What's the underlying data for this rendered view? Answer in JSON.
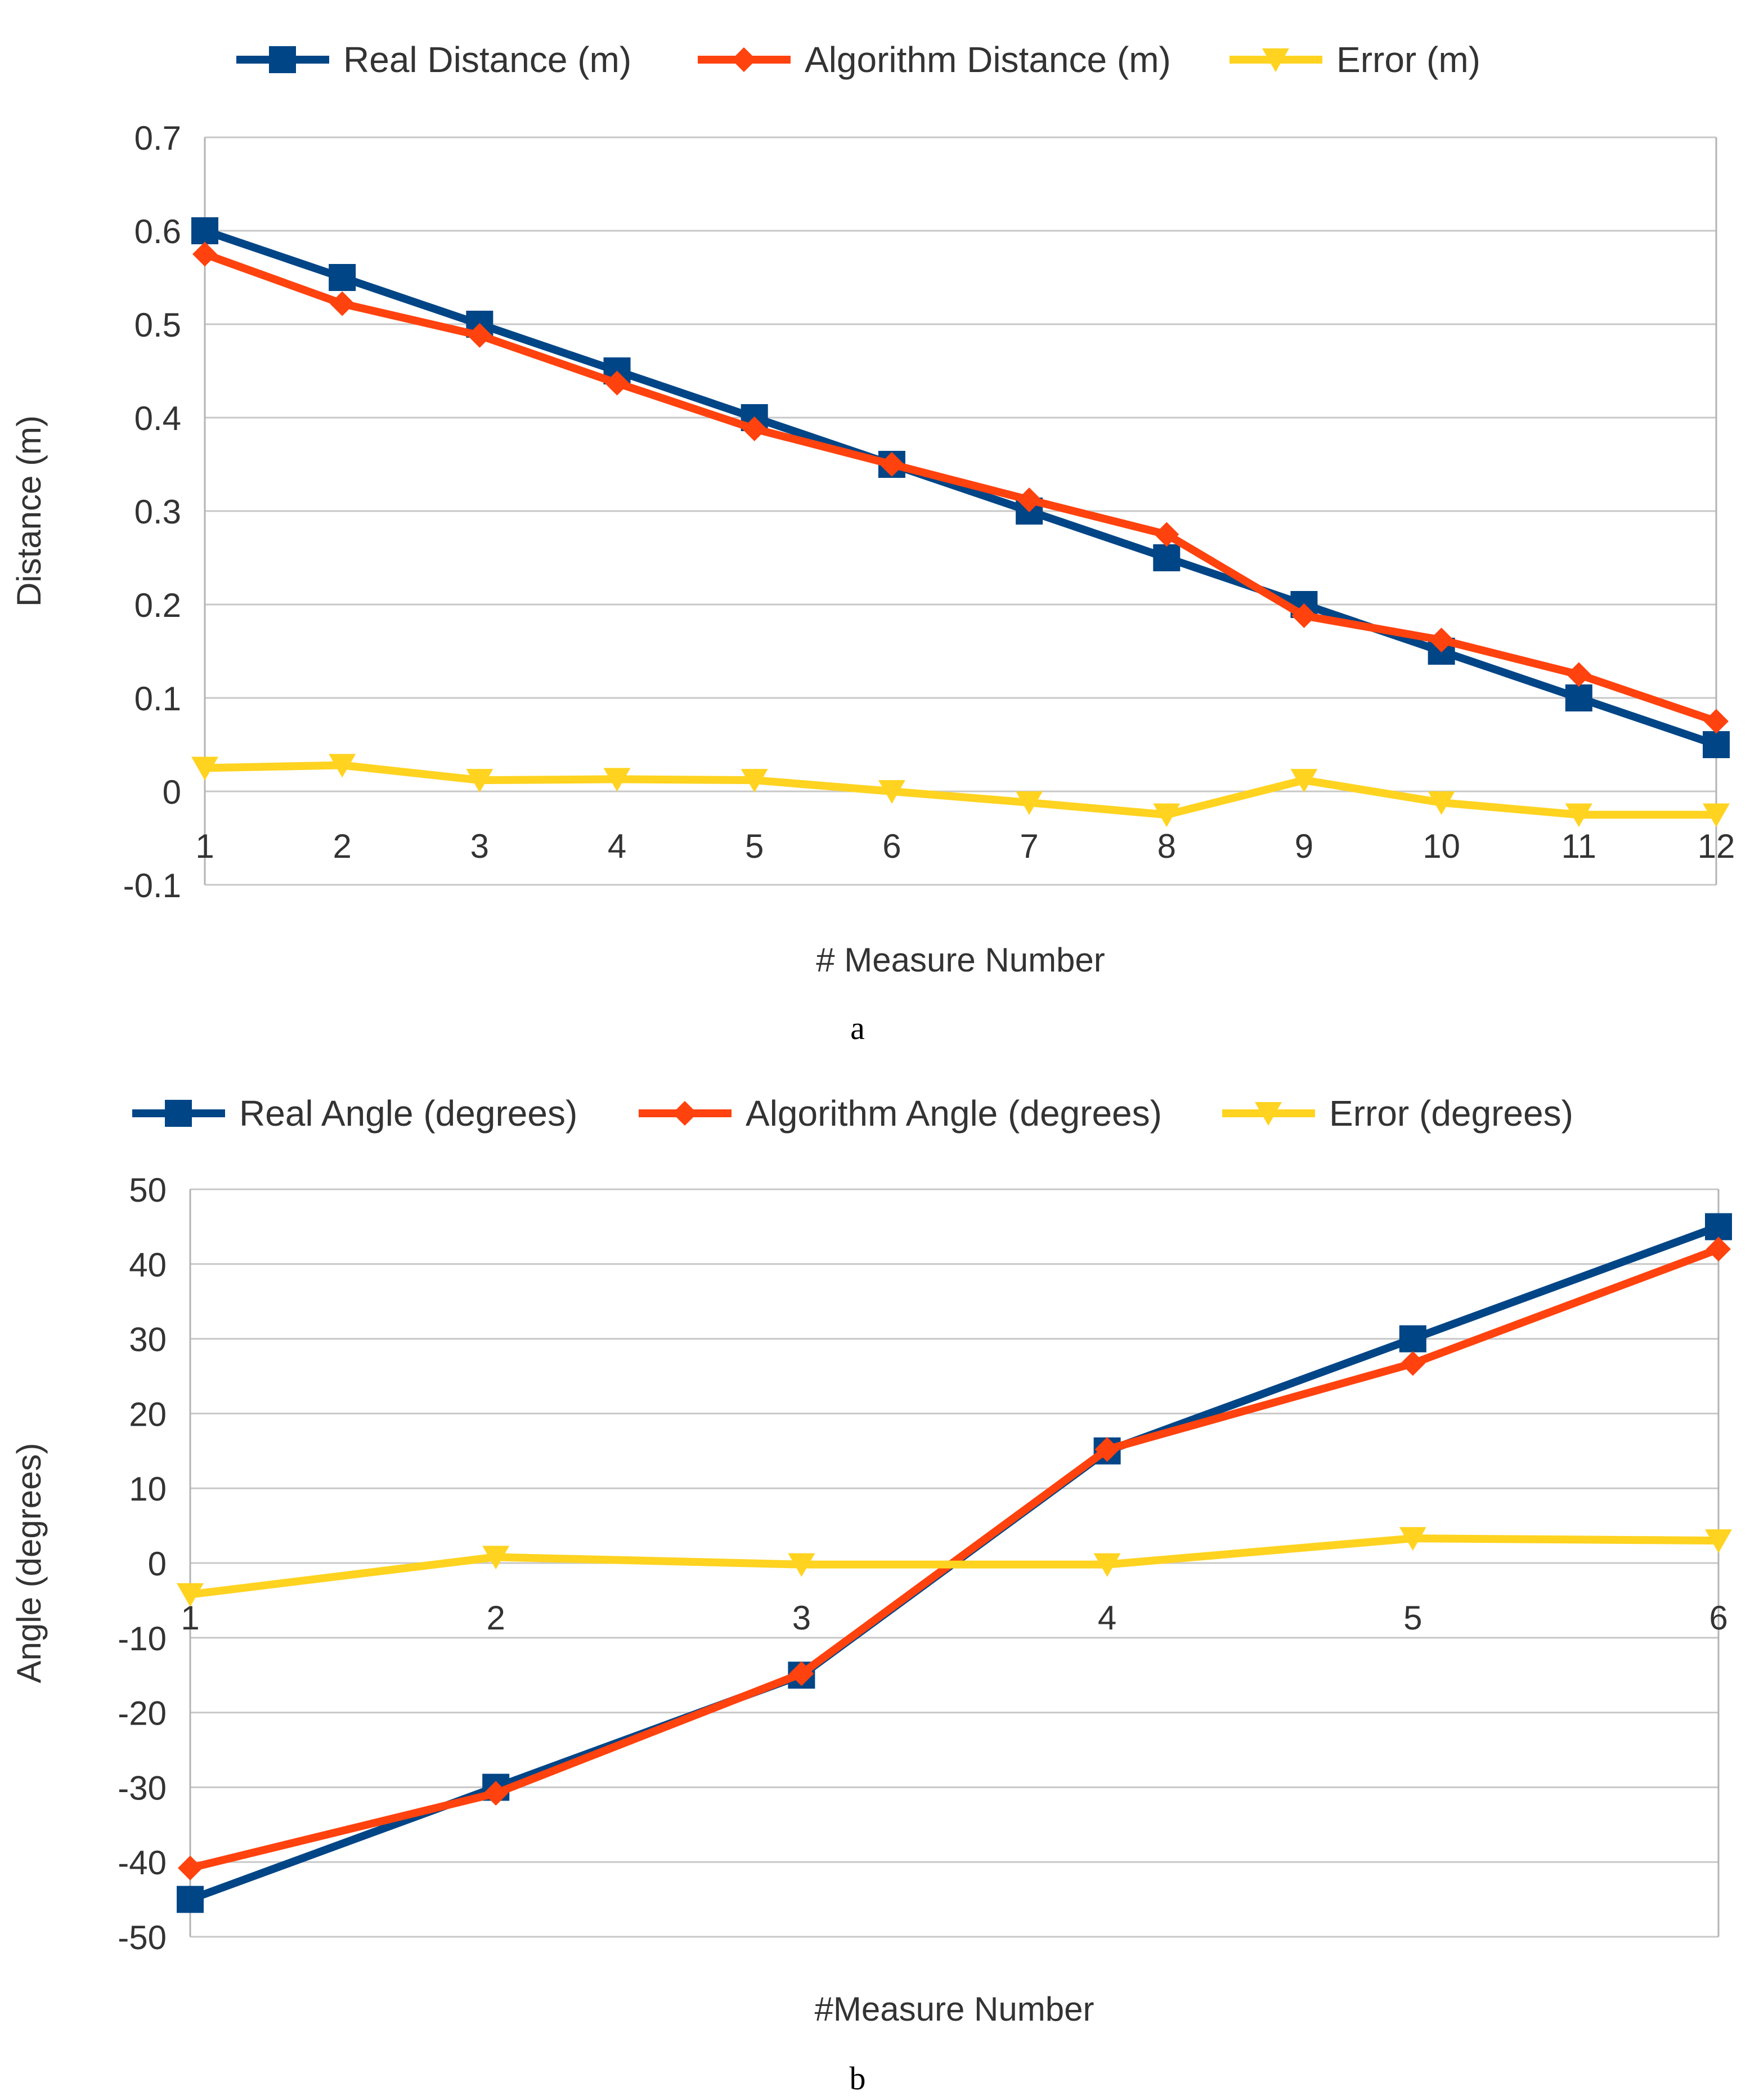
{
  "chart_data": [
    {
      "type": "line",
      "panel_label": "a",
      "categories": [
        "1",
        "2",
        "3",
        "4",
        "5",
        "6",
        "7",
        "8",
        "9",
        "10",
        "11",
        "12"
      ],
      "x": [
        1,
        2,
        3,
        4,
        5,
        6,
        7,
        8,
        9,
        10,
        11,
        12
      ],
      "series": [
        {
          "name": "Real Distance (m)",
          "color": "#004586",
          "marker": "square",
          "values": [
            0.6,
            0.55,
            0.5,
            0.45,
            0.4,
            0.35,
            0.3,
            0.25,
            0.2,
            0.15,
            0.1,
            0.05
          ]
        },
        {
          "name": "Algorithm Distance (m)",
          "color": "#ff420e",
          "marker": "diamond",
          "values": [
            0.575,
            0.522,
            0.488,
            0.437,
            0.388,
            0.35,
            0.312,
            0.275,
            0.188,
            0.162,
            0.125,
            0.075
          ]
        },
        {
          "name": "Error (m)",
          "color": "#ffd320",
          "marker": "triangle-down",
          "values": [
            0.025,
            0.028,
            0.012,
            0.013,
            0.012,
            0.0,
            -0.012,
            -0.025,
            0.012,
            -0.012,
            -0.025,
            -0.025
          ]
        }
      ],
      "xlabel": "# Measure Number",
      "ylabel": "Distance (m)",
      "ylim": [
        -0.1,
        0.7
      ],
      "yticks": [
        "-0.1",
        "0",
        "0.1",
        "0.2",
        "0.3",
        "0.4",
        "0.5",
        "0.6",
        "0.7"
      ],
      "grid": true,
      "legend": "top"
    },
    {
      "type": "line",
      "panel_label": "b",
      "categories": [
        "1",
        "2",
        "3",
        "4",
        "5",
        "6"
      ],
      "x": [
        1,
        2,
        3,
        4,
        5,
        6
      ],
      "series": [
        {
          "name": "Real Angle (degrees)",
          "color": "#004586",
          "marker": "square",
          "values": [
            -45,
            -30,
            -15,
            15,
            30,
            45
          ]
        },
        {
          "name": "Algorithm Angle (degrees)",
          "color": "#ff420e",
          "marker": "diamond",
          "values": [
            -40.8,
            -30.8,
            -14.8,
            15.2,
            26.7,
            42
          ]
        },
        {
          "name": "Error (degrees)",
          "color": "#ffd320",
          "marker": "triangle-down",
          "values": [
            -4.2,
            0.8,
            -0.2,
            -0.2,
            3.3,
            3
          ]
        }
      ],
      "xlabel": "#Measure Number",
      "ylabel": "Angle (degrees)",
      "ylim": [
        -50,
        50
      ],
      "yticks": [
        "-50",
        "-40",
        "-30",
        "-20",
        "-10",
        "0",
        "10",
        "20",
        "30",
        "40",
        "50"
      ],
      "grid": true,
      "legend": "top"
    }
  ]
}
